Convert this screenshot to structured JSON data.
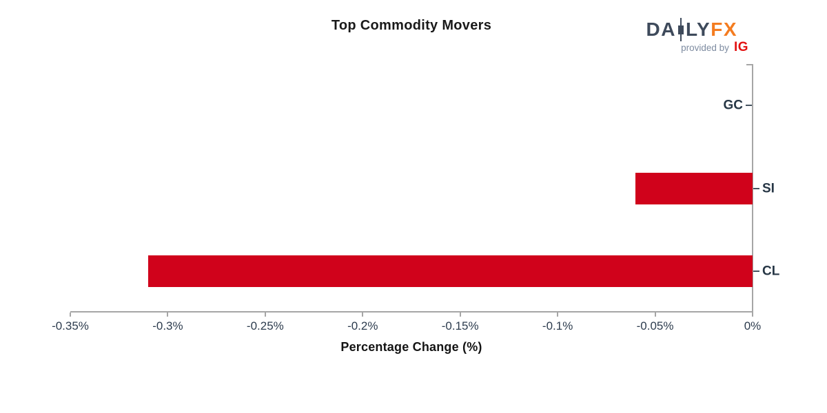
{
  "header": {
    "logo": {
      "da": "DA",
      "ly": "LY",
      "fx": "FX",
      "provided_by": "provided by",
      "ig": "IG"
    }
  },
  "chart_data": {
    "type": "bar",
    "orientation": "horizontal",
    "title": "Top Commodity Movers",
    "categories": [
      "GC",
      "SI",
      "CL"
    ],
    "values": [
      0.0,
      -0.06,
      -0.31
    ],
    "xlabel": "Percentage Change (%)",
    "xlim": [
      -0.35,
      0
    ],
    "xtick_values": [
      -0.35,
      -0.3,
      -0.25,
      -0.2,
      -0.15,
      -0.1,
      -0.05,
      0
    ],
    "xtick_labels": [
      "-0.35%",
      "-0.3%",
      "-0.25%",
      "-0.2%",
      "-0.15%",
      "-0.1%",
      "-0.05%",
      "0%"
    ],
    "label_sides": [
      "left",
      "right",
      "right"
    ],
    "grid": false,
    "legend": false,
    "bar_color": "#d0021b"
  },
  "colors": {
    "background": "#ffffff",
    "bar": "#d0021b",
    "axis": "#a6a6a6",
    "tick_text": "#2d3c4e",
    "title_text": "#1a1a1a",
    "logo_slate": "#3e4a5b",
    "logo_orange": "#f47c20",
    "provided_gray": "#7d8ba0",
    "ig_red": "#e31212"
  }
}
